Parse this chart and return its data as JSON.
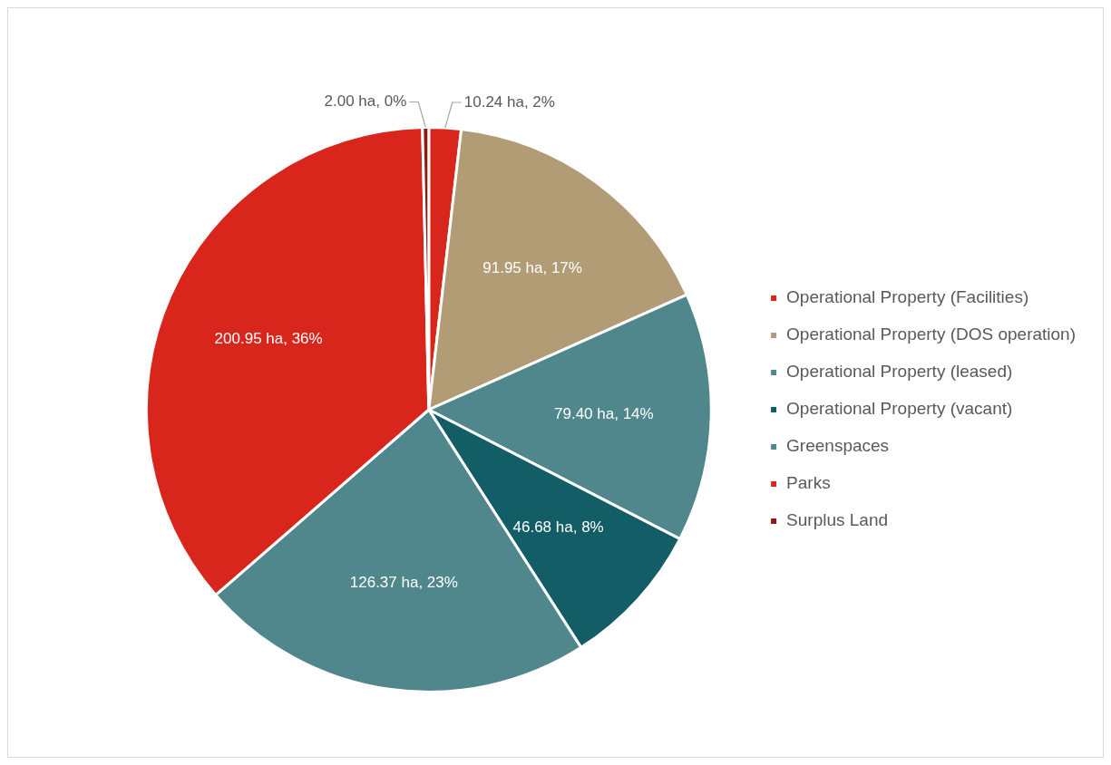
{
  "chart_data": {
    "type": "pie",
    "categories": [
      "Operational Property (Facilities)",
      "Operational Property (DOS operation)",
      "Operational Property (leased)",
      "Operational Property (vacant)",
      "Greenspaces",
      "Parks",
      "Surplus Land"
    ],
    "values": [
      10.24,
      91.95,
      79.4,
      46.68,
      126.37,
      200.95,
      2.0
    ],
    "colors": [
      "#d9261c",
      "#b19c76",
      "#4f878d",
      "#135e66",
      "#4f878d",
      "#d9261c",
      "#8b1a10"
    ],
    "value_labels": [
      "10.24 ha, 2%",
      "91.95 ha, 17%",
      "79.40 ha, 14%",
      "46.68 ha, 8%",
      "126.37 ha, 23%",
      "200.95 ha, 36%",
      "2.00 ha, 0%"
    ],
    "legend": "right"
  }
}
